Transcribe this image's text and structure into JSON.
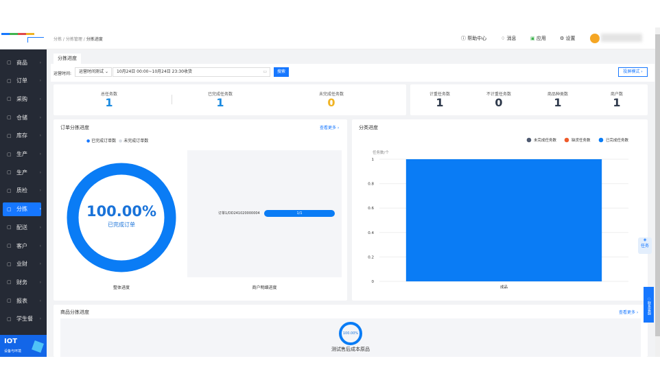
{
  "sidebar": {
    "items": [
      {
        "label": "商品",
        "icon": "grid-icon"
      },
      {
        "label": "订单",
        "icon": "order-icon"
      },
      {
        "label": "采购",
        "icon": "purchase-icon"
      },
      {
        "label": "仓储",
        "icon": "warehouse-icon"
      },
      {
        "label": "库存",
        "icon": "inventory-icon"
      },
      {
        "label": "生产",
        "icon": "factory-icon"
      },
      {
        "label": "生产",
        "icon": "factory-icon"
      },
      {
        "label": "质检",
        "icon": "inspect-icon"
      },
      {
        "label": "分拣",
        "icon": "sort-icon",
        "active": true
      },
      {
        "label": "配送",
        "icon": "truck-icon"
      },
      {
        "label": "客户",
        "icon": "user-icon"
      },
      {
        "label": "业财",
        "icon": "chart-icon"
      },
      {
        "label": "财务",
        "icon": "finance-icon"
      },
      {
        "label": "报表",
        "icon": "clock-icon"
      },
      {
        "label": "学生餐",
        "icon": "meal-icon"
      }
    ],
    "iot": {
      "title": "IOT",
      "subtitle": "设备与环境"
    }
  },
  "header": {
    "breadcrumb": [
      "分拣",
      "分拣管理",
      "分拣进度"
    ],
    "help": "帮助中心",
    "messages": "消息",
    "apps": "应用",
    "settings": "设置"
  },
  "tab": "分拣进度",
  "filter": {
    "label": "运营时间:",
    "select": "运营时间测试",
    "range": "10月24日 00:00~10月24日 23:30收货",
    "search": "搜索",
    "screen_mode": "投屏模式"
  },
  "stats": [
    {
      "label": "总任务数",
      "value": "1",
      "color": "#1a8ae0"
    },
    {
      "label": "已完成任务数",
      "value": "1",
      "color": "#1a8ae0"
    },
    {
      "label": "未完成任务数",
      "value": "0",
      "color": "#f0b323"
    }
  ],
  "stats2": [
    {
      "label": "计重任务数",
      "value": "1"
    },
    {
      "label": "不计重任务数",
      "value": "0"
    },
    {
      "label": "商品种类数",
      "value": "1"
    },
    {
      "label": "商户数",
      "value": "1"
    }
  ],
  "order_panel": {
    "title": "订单分拣进度",
    "more": "查看更多",
    "legend": [
      "已完成订单数",
      "未完成订单数"
    ],
    "percent": "100.00%",
    "percent_label": "已完成订单",
    "progress": 1.0,
    "overall": "整体进度",
    "merchant_label": "订单1/DD241020000004",
    "merchant_value": "1/1",
    "merchant_progress": 1.0,
    "merchant_caption": "商户明细进度"
  },
  "chart_data": {
    "type": "bar",
    "title": "分类进度",
    "ylabel": "任务数/个",
    "categories": [
      "成品"
    ],
    "series": [
      {
        "name": "未完成任务数",
        "values": [
          0
        ],
        "color": "#4e5a70"
      },
      {
        "name": "缺货任务数",
        "values": [
          0
        ],
        "color": "#ee5a2a"
      },
      {
        "name": "已完成任务数",
        "values": [
          1
        ],
        "color": "#0a7cf5"
      }
    ],
    "ylim": [
      0,
      1
    ],
    "yticks": [
      "0",
      "0.2",
      "0.4",
      "0.6",
      "0.8",
      "1"
    ],
    "legend": "top-right",
    "grid": true
  },
  "goods_panel": {
    "title": "商品分拣进度",
    "more": "查看更多",
    "items": [
      {
        "percent": "100.00%",
        "name": "测试售后成本原品",
        "progress": 1.0
      }
    ]
  },
  "float": {
    "task": "任务",
    "contact": "联系客服"
  },
  "colors": {
    "accent": "#1677ff",
    "sidebar": "#252a35"
  }
}
